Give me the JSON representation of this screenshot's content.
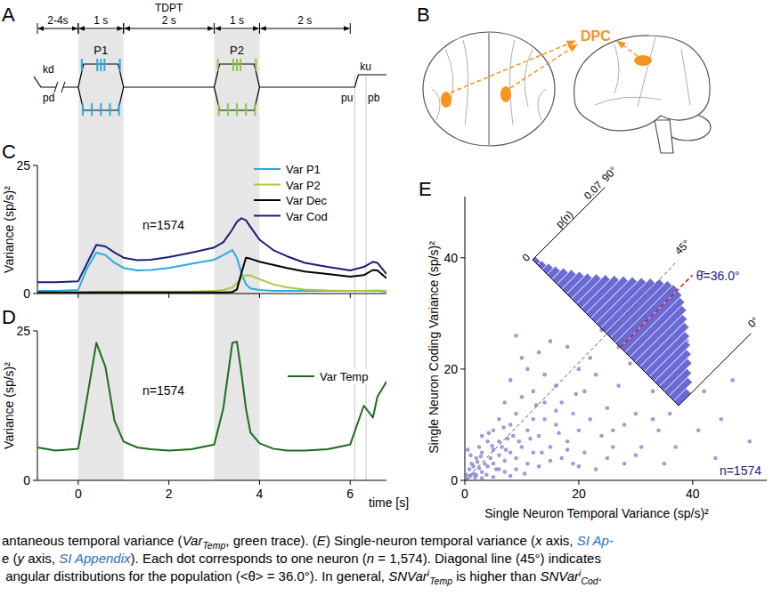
{
  "panel_a": {
    "panel": "A",
    "xlim": [
      -0.9,
      6.8
    ],
    "intervals": [
      {
        "label": "2-4s",
        "start": -0.9,
        "end": 0
      },
      {
        "label": "1 s",
        "start": 0,
        "end": 1
      },
      {
        "label": "2 s",
        "start": 1,
        "end": 3
      },
      {
        "label": "1 s",
        "start": 3,
        "end": 4
      },
      {
        "label": "2 s",
        "start": 4,
        "end": 6
      }
    ],
    "tdpt": {
      "label": "TDPT",
      "start": 1,
      "end": 3
    },
    "stimuli": [
      {
        "label": "P1",
        "start": 0,
        "end": 1,
        "color": "#29abe2",
        "pulses_top": [
          0.08,
          0.42,
          0.5,
          0.58,
          0.92
        ],
        "pulses_bottom": [
          0.1,
          0.3,
          0.5,
          0.7,
          0.9
        ]
      },
      {
        "label": "P2",
        "start": 3,
        "end": 4,
        "color": "#8cc63f",
        "pulses_top": [
          0.08,
          0.42,
          0.5,
          0.58,
          0.92
        ],
        "pulses_bottom": [
          0.1,
          0.3,
          0.5,
          0.7,
          0.9
        ]
      }
    ],
    "key_labels": {
      "down": "kd",
      "up": "ku"
    },
    "probe_labels": {
      "down": "pd",
      "up": "pu",
      "back": "pb"
    },
    "key_up_time": 6.1,
    "probe_back_time": 6.35
  },
  "panel_b": {
    "panel": "B",
    "label": "DPC",
    "color": "#f7941d"
  },
  "chart_data": [
    {
      "panel": "C",
      "type": "line",
      "x": [
        -0.9,
        -0.5,
        0,
        0.2,
        0.4,
        0.6,
        0.8,
        1.0,
        1.3,
        1.6,
        2.0,
        2.5,
        3.0,
        3.2,
        3.4,
        3.5,
        3.6,
        3.7,
        3.8,
        4.0,
        4.3,
        4.6,
        5.0,
        5.5,
        6.0,
        6.3,
        6.5,
        6.6,
        6.8
      ],
      "series": [
        {
          "name": "Var P1",
          "color": "#29abe2",
          "values": [
            0.5,
            0.5,
            0.7,
            5,
            8,
            7.5,
            6,
            5,
            4.5,
            4.6,
            5,
            5.8,
            6.6,
            7.5,
            8.5,
            7,
            4,
            1.8,
            1,
            0.7,
            0.5,
            0.5,
            0.5,
            0.5,
            0.5,
            0.5,
            0.5,
            0.5,
            0.4
          ]
        },
        {
          "name": "Var P2",
          "color": "#a6c93a",
          "values": [
            0.2,
            0.2,
            0.2,
            0.3,
            0.4,
            0.4,
            0.4,
            0.4,
            0.4,
            0.4,
            0.4,
            0.4,
            0.5,
            0.7,
            1.2,
            2,
            3,
            3.6,
            3.5,
            2.8,
            1.8,
            1.2,
            0.8,
            0.6,
            0.5,
            0.5,
            0.6,
            0.6,
            0.5
          ]
        },
        {
          "name": "Var Dec",
          "color": "#000000",
          "values": [
            0.2,
            0.2,
            0.2,
            0.2,
            0.2,
            0.2,
            0.2,
            0.2,
            0.2,
            0.2,
            0.2,
            0.2,
            0.2,
            0.2,
            0.3,
            0.8,
            4,
            7,
            6.8,
            6.2,
            5.6,
            5,
            4.3,
            3.8,
            3.3,
            3.6,
            4.6,
            4.5,
            3
          ]
        },
        {
          "name": "Var Cod",
          "color": "#1c1c7a",
          "values": [
            2.2,
            2.2,
            2.4,
            6,
            9.5,
            9.2,
            8,
            7,
            6.5,
            6.6,
            7.1,
            8,
            9,
            10,
            12.5,
            14,
            14.7,
            14.3,
            13,
            10.5,
            8.5,
            7.3,
            6,
            5.2,
            4.5,
            5.2,
            6.2,
            6,
            3.8
          ]
        }
      ],
      "xlim": [
        -0.9,
        6.8
      ],
      "xticks": [
        0,
        2,
        4,
        6
      ],
      "ylim": [
        0,
        25
      ],
      "yticks": [
        0,
        25
      ],
      "y_label": "Variance (sp/s)²",
      "tick_labels": "y",
      "legend": "upper right",
      "annotation": "n=1574",
      "shaded_intervals": [
        [
          0,
          1
        ],
        [
          3,
          4
        ]
      ]
    },
    {
      "panel": "D",
      "type": "line",
      "x": [
        -0.9,
        -0.5,
        0,
        0.2,
        0.4,
        0.6,
        0.8,
        1.0,
        1.3,
        1.6,
        2.0,
        2.5,
        3.0,
        3.2,
        3.4,
        3.5,
        3.6,
        3.7,
        3.8,
        4.0,
        4.3,
        4.6,
        5.0,
        5.5,
        6.0,
        6.3,
        6.5,
        6.6,
        6.8
      ],
      "series": [
        {
          "name": "Var Temp",
          "color": "#1e6b1e",
          "values": [
            5.5,
            5,
            5.3,
            14,
            23,
            19,
            10,
            6.5,
            5.5,
            5.2,
            5,
            5.2,
            6,
            12,
            23,
            23.2,
            18,
            12,
            8,
            6.2,
            5.3,
            5,
            5,
            5.2,
            6,
            12.5,
            10.5,
            14,
            16.5
          ]
        }
      ],
      "xlim": [
        -0.9,
        6.8
      ],
      "xticks": [
        0,
        2,
        4,
        6
      ],
      "ylim": [
        0,
        25
      ],
      "yticks": [
        0,
        25
      ],
      "x_label": "time [s]",
      "y_label": "Variance (sp/s)²",
      "legend": "upper right",
      "annotation": "n=1574",
      "shaded_intervals": [
        [
          0,
          1
        ],
        [
          3,
          4
        ]
      ]
    },
    {
      "panel": "E",
      "type": "scatter",
      "color": "#5a5ac8",
      "x": [
        0.5,
        1,
        1.5,
        0.8,
        2,
        2.5,
        1.2,
        3,
        3.5,
        2,
        4,
        0.3,
        1.8,
        4.5,
        5,
        3,
        5.5,
        6,
        2.5,
        6.5,
        7,
        4,
        8,
        7.5,
        5,
        9,
        8.5,
        10,
        6,
        3,
        11,
        12,
        9,
        7,
        13,
        10,
        14,
        15,
        12,
        16,
        8,
        11,
        17,
        18,
        14,
        19,
        20,
        13,
        16,
        21,
        22,
        10,
        24,
        9,
        23,
        25,
        26,
        15,
        27,
        28,
        30,
        31,
        29,
        33,
        34,
        35,
        36,
        38,
        20,
        42,
        45,
        47,
        50,
        39,
        18,
        12,
        6,
        7,
        9,
        11,
        13,
        15,
        17,
        19,
        21,
        23,
        14,
        8,
        5,
        3.8,
        2.2,
        1,
        0.5,
        4.2,
        6.8,
        9.5,
        12.5,
        16.5,
        19.5,
        22,
        25,
        28,
        32,
        37,
        41,
        44,
        24,
        27,
        30,
        10.5,
        8,
        5,
        6,
        3,
        1.5,
        2.8,
        4.8,
        7.2,
        11.5,
        13.5,
        18,
        16,
        20,
        26,
        33
      ],
      "values": [
        0.3,
        0.8,
        1.2,
        2,
        1,
        2.2,
        3,
        1.5,
        3,
        4,
        2.5,
        1,
        0.5,
        4,
        3,
        5,
        2,
        4.5,
        6,
        6,
        3.5,
        7,
        5,
        7.5,
        9,
        4,
        8,
        6,
        11,
        8,
        9,
        5,
        12,
        14,
        8,
        15,
        11,
        6,
        16,
        10,
        18,
        20,
        14,
        7,
        19,
        12,
        9,
        23,
        17,
        16,
        11,
        22,
        8,
        26,
        19,
        13,
        6,
        25,
        17,
        10,
        12,
        6,
        21,
        16,
        9,
        3,
        12,
        17,
        20,
        16,
        11,
        18,
        7,
        25,
        24,
        11,
        7,
        1.5,
        2,
        3,
        2.5,
        3.5,
        4,
        3,
        5,
        2,
        14,
        10,
        5.5,
        1,
        3.3,
        4.5,
        5.5,
        8.5,
        9.5,
        7,
        13.5,
        8.5,
        15.5,
        22,
        4,
        3,
        22,
        6,
        9,
        4,
        27,
        24,
        4.5,
        1.2,
        0.8,
        0.6,
        2,
        0.4,
        2.5,
        4.3,
        6.2,
        5.5,
        7.5,
        5,
        5.5,
        12.5,
        2.5,
        9,
        11
      ],
      "xlim": [
        0,
        53
      ],
      "ylim": [
        0,
        51
      ],
      "xticks": [
        0,
        20,
        40
      ],
      "yticks": [
        0,
        20,
        40
      ],
      "x_label": "Single Neuron Temporal Variance (sp/s)²",
      "y_label": "Single Neuron Coding Variance (sp/s)²",
      "annotation": "n=1574",
      "inset": {
        "type": "histogram",
        "y_label": "p(n)",
        "color": "#6a6ad6",
        "bins": [
          0,
          3,
          6,
          9,
          12,
          15,
          18,
          21,
          24,
          27,
          30,
          33,
          36,
          39,
          42,
          45,
          48,
          51,
          54,
          57,
          60,
          63,
          66,
          69,
          72,
          75,
          78,
          81,
          84,
          87,
          90
        ],
        "values": [
          0.012,
          0.018,
          0.022,
          0.027,
          0.031,
          0.035,
          0.039,
          0.043,
          0.046,
          0.05,
          0.053,
          0.055,
          0.056,
          0.055,
          0.052,
          0.048,
          0.044,
          0.04,
          0.036,
          0.032,
          0.028,
          0.024,
          0.02,
          0.017,
          0.014,
          0.011,
          0.008,
          0.006,
          0.004,
          0.003
        ],
        "xlim": [
          0,
          90
        ],
        "xticks": [
          {
            "value": 90,
            "label": "90°"
          },
          {
            "value": 45,
            "label": "45°"
          },
          {
            "value": 0,
            "label": "0°"
          }
        ],
        "ylim": [
          0,
          0.07
        ],
        "yticks": [
          0,
          0.07
        ],
        "mean": 36.0,
        "mean_label": "θ̄=36.0°",
        "mean_color": "#cc2020"
      }
    }
  ],
  "caption": [
    [
      {
        "text": "antaneous temporal variance (",
        "style": "plain"
      },
      {
        "text": "Var",
        "style": "italic"
      },
      {
        "text": "Temp",
        "style": "sub"
      },
      {
        "text": ", green trace). (",
        "style": "plain"
      },
      {
        "text": "E",
        "style": "italic"
      },
      {
        "text": ") Single-neuron temporal variance (",
        "style": "plain"
      },
      {
        "text": "x",
        "style": "italic"
      },
      {
        "text": " axis, ",
        "style": "plain"
      },
      {
        "text": "SI Ap-",
        "style": "link"
      }
    ],
    [
      {
        "text": "e (",
        "style": "plain"
      },
      {
        "text": "y",
        "style": "italic"
      },
      {
        "text": " axis, ",
        "style": "plain"
      },
      {
        "text": "SI Appendix",
        "style": "link"
      },
      {
        "text": "). Each dot corresponds to one neuron (",
        "style": "plain"
      },
      {
        "text": "n",
        "style": "italic"
      },
      {
        "text": " = 1,574). Diagonal line (45°) indicates",
        "style": "plain"
      }
    ],
    [
      {
        "text": " angular distributions for the population (<θ> = 36.0°). In general, ",
        "style": "plain"
      },
      {
        "text": "SNVar",
        "style": "italic"
      },
      {
        "text": "i",
        "style": "sup"
      },
      {
        "text": "Temp",
        "style": "sub"
      },
      {
        "text": " is higher than ",
        "style": "plain"
      },
      {
        "text": "SNVar",
        "style": "italic"
      },
      {
        "text": "i",
        "style": "sup"
      },
      {
        "text": "Cod",
        "style": "sub"
      },
      {
        "text": ".",
        "style": "plain"
      }
    ]
  ]
}
